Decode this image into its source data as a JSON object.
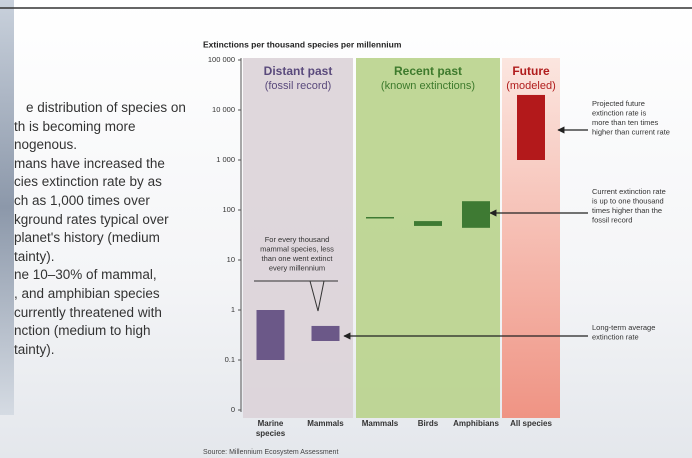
{
  "slide_text": [
    "e distribution of species on",
    "th is becoming more",
    "nogenous.",
    "mans have increased the",
    "cies extinction rate by as",
    "ch as 1,000 times over",
    "kground rates typical over",
    "planet's history (medium",
    "tainty).",
    "ne 10–30% of mammal,",
    ", and amphibian species",
    "currently threatened with",
    "nction (medium to high",
    "tainty)."
  ],
  "chart_data": {
    "type": "range-bar",
    "title": "Extinctions per thousand species per millennium",
    "source": "Source: Millennium Ecosystem Assessment",
    "y_scale": "log",
    "ylim": [
      0.01,
      100000
    ],
    "yticks": [
      {
        "value": 0.01,
        "label": "0"
      },
      0.1,
      1,
      10,
      100,
      {
        "value": 1000,
        "label": "1 000"
      },
      {
        "value": 10000,
        "label": "10 000"
      },
      {
        "value": 100000,
        "label": "100 000"
      }
    ],
    "periods": [
      {
        "title": "Distant past",
        "subtitle": "(fossil record)",
        "background": "#dcd3d8",
        "title_color": "#5a4a7c",
        "color": "#6b5888",
        "categories": [
          "Marine species",
          "Mammals"
        ],
        "low": [
          0.1,
          0.24
        ],
        "high": [
          1,
          0.48
        ]
      },
      {
        "title": "Recent past",
        "subtitle": "(known extinctions)",
        "background": "#b9d38c",
        "title_color": "#3d7a2c",
        "color": "#3e7a33",
        "categories": [
          "Mammals",
          "Birds",
          "Amphibians"
        ],
        "low": [
          70,
          48,
          44
        ],
        "high": [
          70,
          60,
          150
        ]
      },
      {
        "title": "Future",
        "subtitle": "(modeled)",
        "background": "#f08a78",
        "title_color": "#b01c1c",
        "color": "#b3191b",
        "categories": [
          "All species"
        ],
        "low": [
          1000
        ],
        "high": [
          20000
        ]
      }
    ],
    "annotations": [
      {
        "lines": [
          "Projected future",
          "extinction rate is",
          "more than ten times",
          "higher than current rate"
        ]
      },
      {
        "lines": [
          "Current extinction rate",
          "is up to one thousand",
          "times higher than the",
          "fossil record"
        ]
      },
      {
        "lines": [
          "Long-term average",
          "extinction rate"
        ]
      },
      {
        "lines": [
          "For every thousand",
          "mammal species, less",
          "than one went extinct",
          "every millennium"
        ]
      }
    ]
  }
}
